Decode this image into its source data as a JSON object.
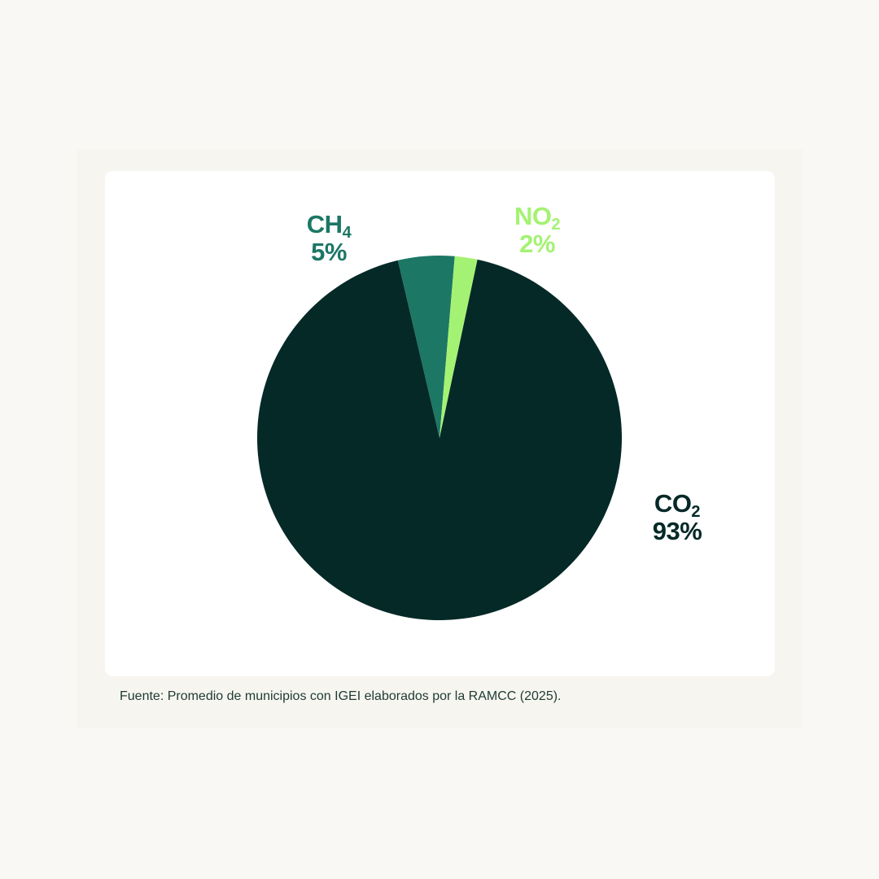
{
  "chart_data": {
    "type": "pie",
    "title": "",
    "slices": [
      {
        "label": "CO",
        "subscript": "2",
        "value": 93,
        "value_label": "93%",
        "color": "#052927"
      },
      {
        "label": "CH",
        "subscript": "4",
        "value": 5,
        "value_label": "5%",
        "color": "#1c7765"
      },
      {
        "label": "NO",
        "subscript": "2",
        "value": 2,
        "value_label": "2%",
        "color": "#a4f273"
      }
    ]
  },
  "source": "Fuente: Promedio de municipios con IGEI elaborados por la RAMCC (2025).",
  "colors": {
    "background": "#f9f8f4",
    "card": "#ffffff"
  }
}
